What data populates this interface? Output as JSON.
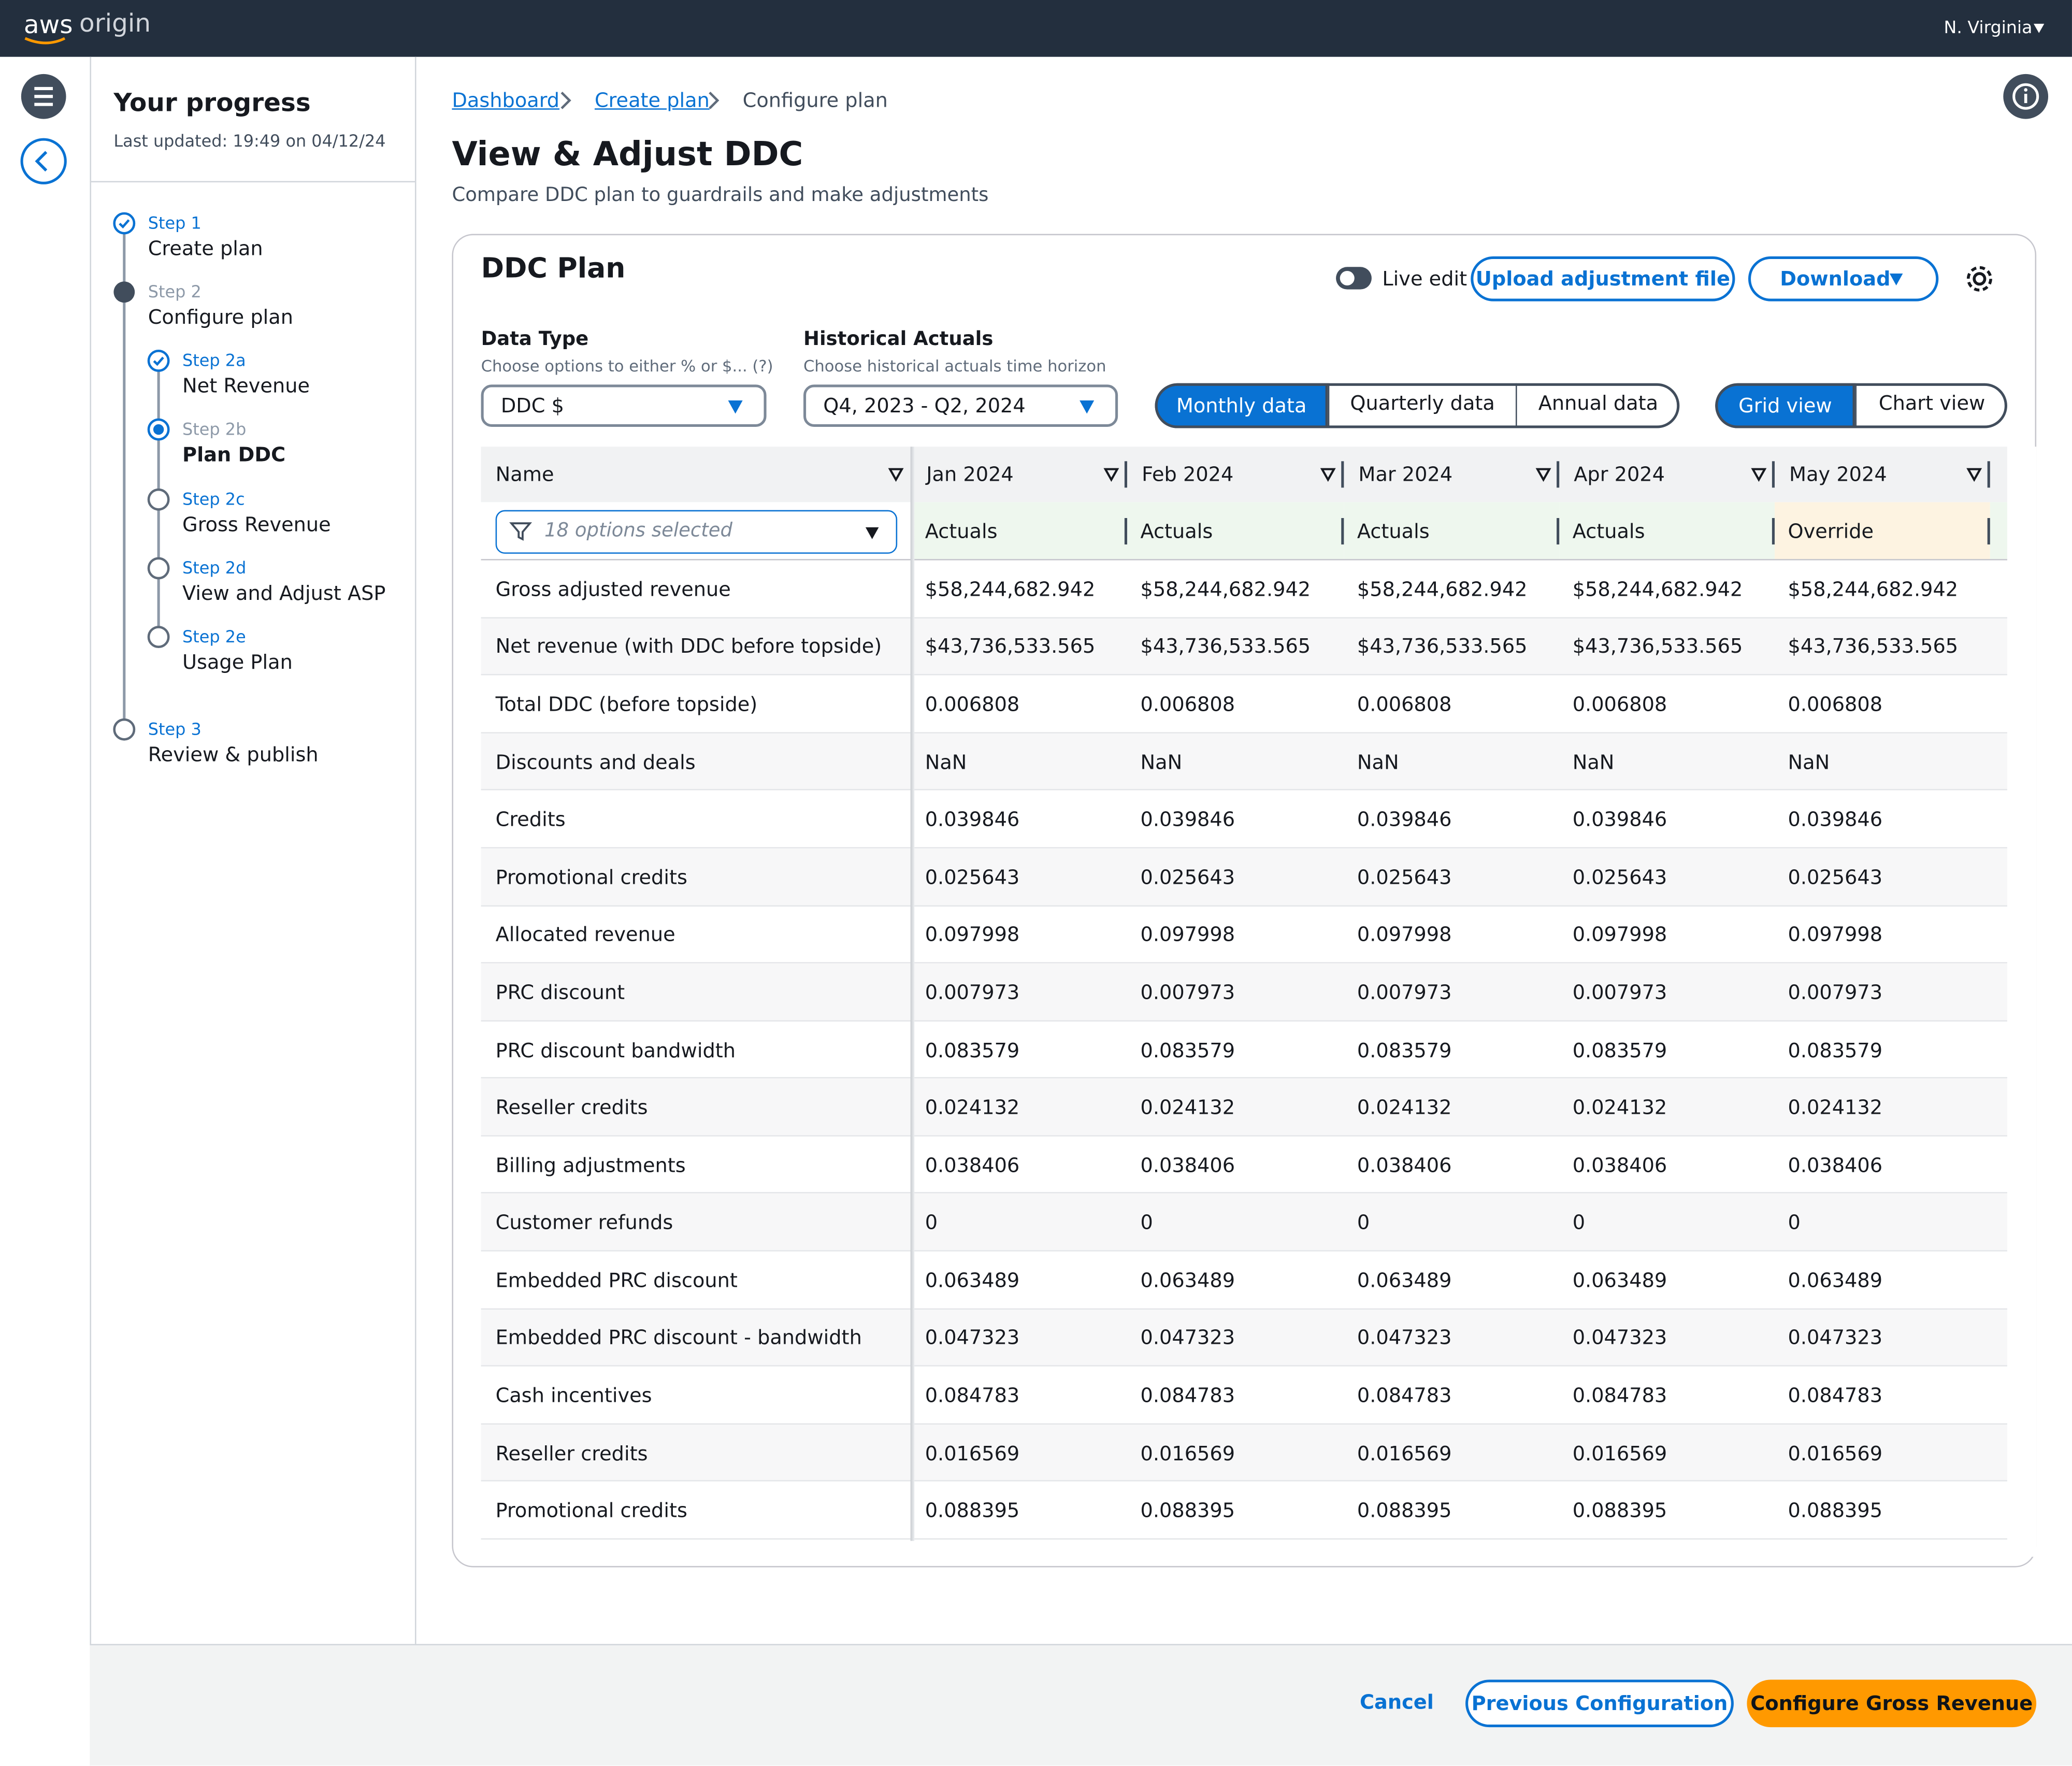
{
  "header": {
    "logo": "aws",
    "product": "origin",
    "region": "N. Virginia"
  },
  "progress": {
    "title": "Your progress",
    "updated": "Last updated: 19:49 on 04/12/24",
    "steps": [
      {
        "label": "Step 1",
        "name": "Create plan",
        "state": "done",
        "level": 0
      },
      {
        "label": "Step 2",
        "name": "Configure plan",
        "state": "in-progress",
        "level": 0
      },
      {
        "label": "Step 2a",
        "name": "Net Revenue",
        "state": "done",
        "level": 1
      },
      {
        "label": "Step 2b",
        "name": "Plan DDC",
        "state": "current",
        "level": 1
      },
      {
        "label": "Step 2c",
        "name": "Gross Revenue",
        "state": "todo",
        "level": 1
      },
      {
        "label": "Step 2d",
        "name": "View and Adjust ASP",
        "state": "todo",
        "level": 1
      },
      {
        "label": "Step 2e",
        "name": "Usage Plan",
        "state": "todo",
        "level": 1
      },
      {
        "label": "Step 3",
        "name": "Review & publish",
        "state": "todo",
        "level": 0
      }
    ]
  },
  "breadcrumb": [
    "Dashboard",
    "Create plan",
    "Configure plan"
  ],
  "page": {
    "title": "View & Adjust DDC",
    "subtitle": "Compare DDC plan to guardrails and make adjustments"
  },
  "panel": {
    "title": "DDC Plan",
    "live_edit": "Live edit",
    "upload": "Upload adjustment file",
    "download": "Download",
    "data_type": {
      "label": "Data Type",
      "hint": "Choose options to either % or $... (?)",
      "value": "DDC $"
    },
    "historical": {
      "label": "Historical Actuals",
      "hint": "Choose historical actuals time horizon",
      "value": "Q4, 2023 - Q2, 2024"
    },
    "period_toggle": {
      "options": [
        "Monthly data",
        "Quarterly data",
        "Annual data"
      ],
      "selected": 0
    },
    "view_toggle": {
      "options": [
        "Grid view",
        "Chart view"
      ],
      "selected": 0
    }
  },
  "table": {
    "columns": [
      "Name",
      "Jan 2024",
      "Feb 2024",
      "Mar 2024",
      "Apr 2024",
      "May 2024"
    ],
    "filter": "18 options selected",
    "subheaders": [
      "Actuals",
      "Actuals",
      "Actuals",
      "Actuals",
      "Override"
    ],
    "rows": [
      {
        "name": "Gross adjusted revenue",
        "cells": [
          "$58,244,682.942",
          "$58,244,682.942",
          "$58,244,682.942",
          "$58,244,682.942",
          "$58,244,682.942"
        ]
      },
      {
        "name": "Net revenue (with DDC before topside)",
        "cells": [
          "$43,736,533.565",
          "$43,736,533.565",
          "$43,736,533.565",
          "$43,736,533.565",
          "$43,736,533.565"
        ]
      },
      {
        "name": "Total DDC (before topside)",
        "cells": [
          "0.006808",
          "0.006808",
          "0.006808",
          "0.006808",
          "0.006808"
        ]
      },
      {
        "name": "Discounts and deals",
        "cells": [
          "NaN",
          "NaN",
          "NaN",
          "NaN",
          "NaN"
        ]
      },
      {
        "name": "Credits",
        "cells": [
          "0.039846",
          "0.039846",
          "0.039846",
          "0.039846",
          "0.039846"
        ]
      },
      {
        "name": "Promotional credits",
        "cells": [
          "0.025643",
          "0.025643",
          "0.025643",
          "0.025643",
          "0.025643"
        ]
      },
      {
        "name": "Allocated revenue",
        "cells": [
          "0.097998",
          "0.097998",
          "0.097998",
          "0.097998",
          "0.097998"
        ]
      },
      {
        "name": "PRC discount",
        "cells": [
          "0.007973",
          "0.007973",
          "0.007973",
          "0.007973",
          "0.007973"
        ]
      },
      {
        "name": "PRC discount bandwidth",
        "cells": [
          "0.083579",
          "0.083579",
          "0.083579",
          "0.083579",
          "0.083579"
        ]
      },
      {
        "name": "Reseller credits",
        "cells": [
          "0.024132",
          "0.024132",
          "0.024132",
          "0.024132",
          "0.024132"
        ]
      },
      {
        "name": "Billing adjustments",
        "cells": [
          "0.038406",
          "0.038406",
          "0.038406",
          "0.038406",
          "0.038406"
        ]
      },
      {
        "name": "Customer refunds",
        "cells": [
          "0",
          "0",
          "0",
          "0",
          "0"
        ]
      },
      {
        "name": "Embedded PRC discount",
        "cells": [
          "0.063489",
          "0.063489",
          "0.063489",
          "0.063489",
          "0.063489"
        ]
      },
      {
        "name": "Embedded PRC discount - bandwidth",
        "cells": [
          "0.047323",
          "0.047323",
          "0.047323",
          "0.047323",
          "0.047323"
        ]
      },
      {
        "name": "Cash incentives",
        "cells": [
          "0.084783",
          "0.084783",
          "0.084783",
          "0.084783",
          "0.084783"
        ]
      },
      {
        "name": "Reseller credits",
        "cells": [
          "0.016569",
          "0.016569",
          "0.016569",
          "0.016569",
          "0.016569"
        ]
      },
      {
        "name": "Promotional credits",
        "cells": [
          "0.088395",
          "0.088395",
          "0.088395",
          "0.088395",
          "0.088395"
        ]
      }
    ]
  },
  "footer": {
    "cancel": "Cancel",
    "previous": "Previous Configuration",
    "next": "Configure Gross Revenue"
  }
}
